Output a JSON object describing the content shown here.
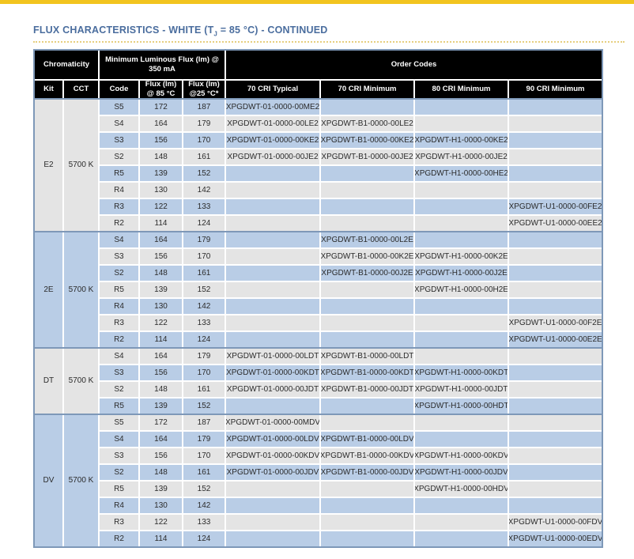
{
  "colors": {
    "accent_bar": "#F2C41F",
    "rule": "#E6CF7F",
    "title": "#4A6D9E",
    "header_bg": "#000000",
    "header_text": "#FFFFFF",
    "row_blue": "#B9CDE6",
    "row_gray": "#E4E4E4",
    "table_border": "#7E98B8"
  },
  "title": {
    "prefix": "FLUX CHARACTERISTICS - WHITE (T",
    "subscript": "J",
    "suffix": " = 85 °C) - CONTINUED"
  },
  "table": {
    "header_groups": {
      "chromaticity": "Chromaticity",
      "min_flux": "Minimum Luminous Flux (lm) @ 350 mA",
      "order_codes": "Order Codes"
    },
    "columns": [
      "Kit",
      "CCT",
      "Code",
      "Flux (lm) @ 85 °C",
      "Flux (lm) @25 °C*",
      "70 CRI Typical",
      "70 CRI Minimum",
      "80 CRI Minimum",
      "90 CRI Minimum"
    ],
    "groups": [
      {
        "kit": "E2",
        "cct": "5700 K",
        "rows": [
          {
            "code": "S5",
            "flux_85": "172",
            "flux_25": "187",
            "cri70_typical": "XPGDWT-01-0000-00ME2",
            "cri70_min": "",
            "cri80_min": "",
            "cri90_min": ""
          },
          {
            "code": "S4",
            "flux_85": "164",
            "flux_25": "179",
            "cri70_typical": "XPGDWT-01-0000-00LE2",
            "cri70_min": "XPGDWT-B1-0000-00LE2",
            "cri80_min": "",
            "cri90_min": ""
          },
          {
            "code": "S3",
            "flux_85": "156",
            "flux_25": "170",
            "cri70_typical": "XPGDWT-01-0000-00KE2",
            "cri70_min": "XPGDWT-B1-0000-00KE2",
            "cri80_min": "XPGDWT-H1-0000-00KE2",
            "cri90_min": ""
          },
          {
            "code": "S2",
            "flux_85": "148",
            "flux_25": "161",
            "cri70_typical": "XPGDWT-01-0000-00JE2",
            "cri70_min": "XPGDWT-B1-0000-00JE2",
            "cri80_min": "XPGDWT-H1-0000-00JE2",
            "cri90_min": ""
          },
          {
            "code": "R5",
            "flux_85": "139",
            "flux_25": "152",
            "cri70_typical": "",
            "cri70_min": "",
            "cri80_min": "XPGDWT-H1-0000-00HE2",
            "cri90_min": ""
          },
          {
            "code": "R4",
            "flux_85": "130",
            "flux_25": "142",
            "cri70_typical": "",
            "cri70_min": "",
            "cri80_min": "",
            "cri90_min": ""
          },
          {
            "code": "R3",
            "flux_85": "122",
            "flux_25": "133",
            "cri70_typical": "",
            "cri70_min": "",
            "cri80_min": "",
            "cri90_min": "XPGDWT-U1-0000-00FE2"
          },
          {
            "code": "R2",
            "flux_85": "114",
            "flux_25": "124",
            "cri70_typical": "",
            "cri70_min": "",
            "cri80_min": "",
            "cri90_min": "XPGDWT-U1-0000-00EE2"
          }
        ]
      },
      {
        "kit": "2E",
        "cct": "5700 K",
        "rows": [
          {
            "code": "S4",
            "flux_85": "164",
            "flux_25": "179",
            "cri70_typical": "",
            "cri70_min": "XPGDWT-B1-0000-00L2E",
            "cri80_min": "",
            "cri90_min": ""
          },
          {
            "code": "S3",
            "flux_85": "156",
            "flux_25": "170",
            "cri70_typical": "",
            "cri70_min": "XPGDWT-B1-0000-00K2E",
            "cri80_min": "XPGDWT-H1-0000-00K2E",
            "cri90_min": ""
          },
          {
            "code": "S2",
            "flux_85": "148",
            "flux_25": "161",
            "cri70_typical": "",
            "cri70_min": "XPGDWT-B1-0000-00J2E",
            "cri80_min": "XPGDWT-H1-0000-00J2E",
            "cri90_min": ""
          },
          {
            "code": "R5",
            "flux_85": "139",
            "flux_25": "152",
            "cri70_typical": "",
            "cri70_min": "",
            "cri80_min": "XPGDWT-H1-0000-00H2E",
            "cri90_min": ""
          },
          {
            "code": "R4",
            "flux_85": "130",
            "flux_25": "142",
            "cri70_typical": "",
            "cri70_min": "",
            "cri80_min": "",
            "cri90_min": ""
          },
          {
            "code": "R3",
            "flux_85": "122",
            "flux_25": "133",
            "cri70_typical": "",
            "cri70_min": "",
            "cri80_min": "",
            "cri90_min": "XPGDWT-U1-0000-00F2E"
          },
          {
            "code": "R2",
            "flux_85": "114",
            "flux_25": "124",
            "cri70_typical": "",
            "cri70_min": "",
            "cri80_min": "",
            "cri90_min": "XPGDWT-U1-0000-00E2E"
          }
        ]
      },
      {
        "kit": "DT",
        "cct": "5700 K",
        "rows": [
          {
            "code": "S4",
            "flux_85": "164",
            "flux_25": "179",
            "cri70_typical": "XPGDWT-01-0000-00LDT",
            "cri70_min": "XPGDWT-B1-0000-00LDT",
            "cri80_min": "",
            "cri90_min": ""
          },
          {
            "code": "S3",
            "flux_85": "156",
            "flux_25": "170",
            "cri70_typical": "XPGDWT-01-0000-00KDT",
            "cri70_min": "XPGDWT-B1-0000-00KDT",
            "cri80_min": "XPGDWT-H1-0000-00KDT",
            "cri90_min": ""
          },
          {
            "code": "S2",
            "flux_85": "148",
            "flux_25": "161",
            "cri70_typical": "XPGDWT-01-0000-00JDT",
            "cri70_min": "XPGDWT-B1-0000-00JDT",
            "cri80_min": "XPGDWT-H1-0000-00JDT",
            "cri90_min": ""
          },
          {
            "code": "R5",
            "flux_85": "139",
            "flux_25": "152",
            "cri70_typical": "",
            "cri70_min": "",
            "cri80_min": "XPGDWT-H1-0000-00HDT",
            "cri90_min": ""
          }
        ]
      },
      {
        "kit": "DV",
        "cct": "5700 K",
        "rows": [
          {
            "code": "S5",
            "flux_85": "172",
            "flux_25": "187",
            "cri70_typical": "XPGDWT-01-0000-00MDV",
            "cri70_min": "",
            "cri80_min": "",
            "cri90_min": ""
          },
          {
            "code": "S4",
            "flux_85": "164",
            "flux_25": "179",
            "cri70_typical": "XPGDWT-01-0000-00LDV",
            "cri70_min": "XPGDWT-B1-0000-00LDV",
            "cri80_min": "",
            "cri90_min": ""
          },
          {
            "code": "S3",
            "flux_85": "156",
            "flux_25": "170",
            "cri70_typical": "XPGDWT-01-0000-00KDV",
            "cri70_min": "XPGDWT-B1-0000-00KDV",
            "cri80_min": "XPGDWT-H1-0000-00KDV",
            "cri90_min": ""
          },
          {
            "code": "S2",
            "flux_85": "148",
            "flux_25": "161",
            "cri70_typical": "XPGDWT-01-0000-00JDV",
            "cri70_min": "XPGDWT-B1-0000-00JDV",
            "cri80_min": "XPGDWT-H1-0000-00JDV",
            "cri90_min": ""
          },
          {
            "code": "R5",
            "flux_85": "139",
            "flux_25": "152",
            "cri70_typical": "",
            "cri70_min": "",
            "cri80_min": "XPGDWT-H1-0000-00HDV",
            "cri90_min": ""
          },
          {
            "code": "R4",
            "flux_85": "130",
            "flux_25": "142",
            "cri70_typical": "",
            "cri70_min": "",
            "cri80_min": "",
            "cri90_min": ""
          },
          {
            "code": "R3",
            "flux_85": "122",
            "flux_25": "133",
            "cri70_typical": "",
            "cri70_min": "",
            "cri80_min": "",
            "cri90_min": "XPGDWT-U1-0000-00FDV"
          },
          {
            "code": "R2",
            "flux_85": "114",
            "flux_25": "124",
            "cri70_typical": "",
            "cri70_min": "",
            "cri80_min": "",
            "cri90_min": "XPGDWT-U1-0000-00EDV"
          }
        ]
      }
    ]
  }
}
